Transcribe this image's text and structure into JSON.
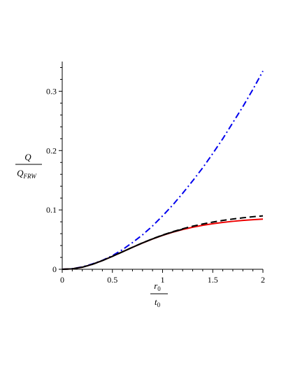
{
  "chart_data": {
    "type": "line",
    "title": "",
    "xlabel": {
      "num": "r",
      "num_sub": "0",
      "den": "t",
      "den_sub": "0"
    },
    "ylabel": {
      "num": "Q",
      "den": "Q",
      "den_sub": "FRW"
    },
    "xlim": [
      0,
      2
    ],
    "ylim": [
      0,
      0.35
    ],
    "xticks": [
      {
        "value": 0,
        "label": "0"
      },
      {
        "value": 0.5,
        "label": "0.5"
      },
      {
        "value": 1,
        "label": "1"
      },
      {
        "value": 1.5,
        "label": "1.5"
      },
      {
        "value": 2,
        "label": "2"
      }
    ],
    "yticks": [
      {
        "value": 0,
        "label": "0"
      },
      {
        "value": 0.1,
        "label": "0.1"
      },
      {
        "value": 0.2,
        "label": "0.2"
      },
      {
        "value": 0.3,
        "label": "0.3"
      }
    ],
    "grid": false,
    "legend": "none",
    "series": [
      {
        "color": "#0000ee",
        "style": "dashdot",
        "x": [
          0,
          0.1,
          0.2,
          0.3,
          0.4,
          0.5,
          0.6,
          0.7,
          0.8,
          0.9,
          1.0,
          1.1,
          1.2,
          1.3,
          1.4,
          1.5,
          1.6,
          1.7,
          1.8,
          1.9,
          2.0
        ],
        "y": [
          0,
          0.001,
          0.004,
          0.009,
          0.015,
          0.023,
          0.033,
          0.045,
          0.058,
          0.073,
          0.09,
          0.108,
          0.128,
          0.149,
          0.171,
          0.195,
          0.22,
          0.247,
          0.274,
          0.303,
          0.334
        ]
      },
      {
        "color": "#ee0000",
        "style": "solid",
        "x": [
          0,
          0.1,
          0.2,
          0.3,
          0.4,
          0.5,
          0.6,
          0.7,
          0.8,
          0.9,
          1.0,
          1.1,
          1.2,
          1.3,
          1.4,
          1.5,
          1.6,
          1.7,
          1.8,
          1.9,
          2.0
        ],
        "y": [
          0,
          0.0007,
          0.0035,
          0.0083,
          0.0146,
          0.0218,
          0.0294,
          0.037,
          0.0443,
          0.051,
          0.0571,
          0.0624,
          0.067,
          0.0709,
          0.0741,
          0.0768,
          0.079,
          0.0808,
          0.0823,
          0.0835,
          0.0845
        ]
      },
      {
        "color": "#000000",
        "style": "dashed",
        "x": [
          0,
          0.1,
          0.2,
          0.3,
          0.4,
          0.5,
          0.6,
          0.7,
          0.8,
          0.9,
          1.0,
          1.1,
          1.2,
          1.3,
          1.4,
          1.5,
          1.6,
          1.7,
          1.8,
          1.9,
          2.0
        ],
        "y": [
          0,
          0.0007,
          0.0035,
          0.0083,
          0.0146,
          0.0218,
          0.0294,
          0.0371,
          0.0445,
          0.0514,
          0.0577,
          0.0633,
          0.0683,
          0.0726,
          0.0763,
          0.0795,
          0.0823,
          0.0847,
          0.0867,
          0.0885,
          0.09
        ]
      },
      {
        "color": "#000000",
        "style": "solid",
        "x": [
          0,
          0.1,
          0.2,
          0.3,
          0.4,
          0.5,
          0.6,
          0.7,
          0.8,
          0.9,
          1.0,
          1.1,
          1.2
        ],
        "y": [
          0,
          0.0007,
          0.0035,
          0.0083,
          0.0146,
          0.0218,
          0.0294,
          0.037,
          0.0444,
          0.0512,
          0.0574,
          0.0628,
          0.0676
        ]
      }
    ]
  }
}
